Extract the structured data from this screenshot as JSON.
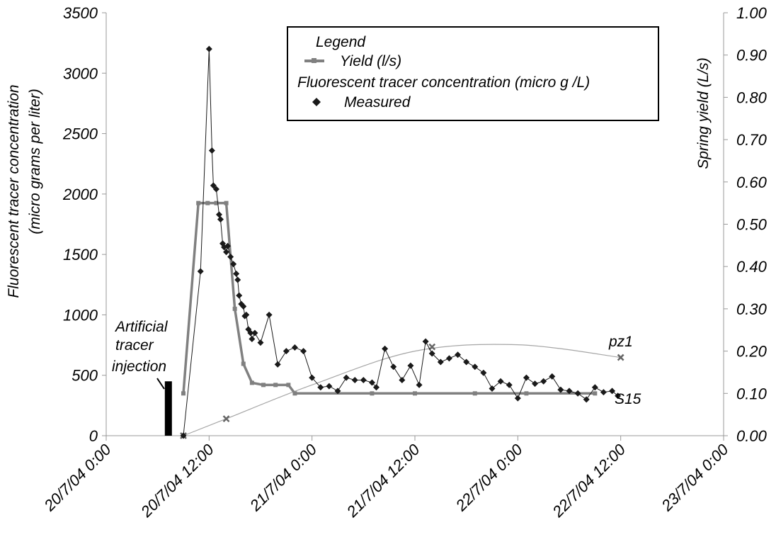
{
  "chart_data": {
    "type": "line",
    "title": "",
    "x_axis": {
      "type": "datetime",
      "ticks": [
        "20/7/04 0:00",
        "20/7/04 12:00",
        "21/7/04 0:00",
        "21/7/04 12:00",
        "22/7/04 0:00",
        "22/7/04 12:00",
        "23/7/04 0:00"
      ],
      "range": [
        "20/7/04 0:00",
        "23/7/04 0:00"
      ]
    },
    "y_axis_left": {
      "label_line1": "Fluorescent  tracer concentration",
      "label_line2": "(micro grams per liter)",
      "ticks": [
        "0",
        "500",
        "1000",
        "1500",
        "2000",
        "2500",
        "3000",
        "3500"
      ],
      "range": [
        0,
        3500
      ]
    },
    "y_axis_right": {
      "label": "Spring yield (L/s)",
      "ticks": [
        "0.00",
        "0.10",
        "0.20",
        "0.30",
        "0.40",
        "0.50",
        "0.60",
        "0.70",
        "0.80",
        "0.90",
        "1.00"
      ],
      "range": [
        0,
        1.0
      ]
    },
    "legend": {
      "placement": "top-right",
      "title": "Legend",
      "yield_label": "Yield (l/s)",
      "conc_title": "Fluorescent tracer concentration (micro g /L)",
      "measured_label": "Measured"
    },
    "annotations": {
      "injection_line1": "Artificial",
      "injection_line2": "tracer",
      "injection_line3": "injection",
      "injection_time": "20/7/04 7:15",
      "injection_height": 450,
      "pz1": "pz1",
      "s15": "S15"
    },
    "colors": {
      "yield": "#808080",
      "measured": "#1a1a1a",
      "pz1": "#a6a6a6"
    },
    "series": [
      {
        "name": "Yield (l/s)",
        "axis": "right",
        "points": [
          [
            "20/7/04 9:00",
            0.1
          ],
          [
            "20/7/04 10:45",
            0.55
          ],
          [
            "20/7/04 11:50",
            0.55
          ],
          [
            "20/7/04 12:50",
            0.55
          ],
          [
            "20/7/04 14:00",
            0.55
          ],
          [
            "20/7/04 15:00",
            0.3
          ],
          [
            "20/7/04 16:00",
            0.17
          ],
          [
            "20/7/04 17:00",
            0.125
          ],
          [
            "20/7/04 18:20",
            0.12
          ],
          [
            "20/7/04 19:45",
            0.12
          ],
          [
            "20/7/04 21:15",
            0.12
          ],
          [
            "20/7/04 22:00",
            0.1
          ],
          [
            "21/7/04 7:00",
            0.1
          ],
          [
            "21/7/04 12:00",
            0.1
          ],
          [
            "21/7/04 19:00",
            0.1
          ],
          [
            "22/7/04 1:00",
            0.1
          ],
          [
            "22/7/04 9:00",
            0.1
          ]
        ]
      },
      {
        "name": "Measured",
        "axis": "left",
        "points": [
          [
            "20/7/04 9:00",
            0
          ],
          [
            "20/7/04 11:00",
            1360
          ],
          [
            "20/7/04 12:00",
            3200
          ],
          [
            "20/7/04 12:20",
            2360
          ],
          [
            "20/7/04 12:30",
            2070
          ],
          [
            "20/7/04 12:50",
            2040
          ],
          [
            "20/7/04 13:10",
            1830
          ],
          [
            "20/7/04 13:20",
            1790
          ],
          [
            "20/7/04 13:35",
            1590
          ],
          [
            "20/7/04 13:45",
            1560
          ],
          [
            "20/7/04 14:00",
            1520
          ],
          [
            "20/7/04 14:10",
            1570
          ],
          [
            "20/7/04 14:30",
            1480
          ],
          [
            "20/7/04 14:50",
            1420
          ],
          [
            "20/7/04 15:10",
            1340
          ],
          [
            "20/7/04 15:20",
            1290
          ],
          [
            "20/7/04 15:30",
            1160
          ],
          [
            "20/7/04 15:45",
            1090
          ],
          [
            "20/7/04 16:00",
            1070
          ],
          [
            "20/7/04 16:10",
            990
          ],
          [
            "20/7/04 16:20",
            1000
          ],
          [
            "20/7/04 16:35",
            880
          ],
          [
            "20/7/04 16:50",
            850
          ],
          [
            "20/7/04 17:00",
            800
          ],
          [
            "20/7/04 17:20",
            850
          ],
          [
            "20/7/04 18:00",
            770
          ],
          [
            "20/7/04 19:00",
            1000
          ],
          [
            "20/7/04 20:00",
            590
          ],
          [
            "20/7/04 21:00",
            700
          ],
          [
            "20/7/04 22:00",
            730
          ],
          [
            "20/7/04 23:00",
            700
          ],
          [
            "21/7/04 0:00",
            480
          ],
          [
            "21/7/04 1:00",
            400
          ],
          [
            "21/7/04 2:00",
            410
          ],
          [
            "21/7/04 3:00",
            370
          ],
          [
            "21/7/04 4:00",
            480
          ],
          [
            "21/7/04 5:00",
            460
          ],
          [
            "21/7/04 6:00",
            460
          ],
          [
            "21/7/04 7:00",
            440
          ],
          [
            "21/7/04 7:30",
            400
          ],
          [
            "21/7/04 8:30",
            720
          ],
          [
            "21/7/04 9:30",
            570
          ],
          [
            "21/7/04 10:30",
            460
          ],
          [
            "21/7/04 11:30",
            580
          ],
          [
            "21/7/04 12:30",
            420
          ],
          [
            "21/7/04 13:15",
            780
          ],
          [
            "21/7/04 14:00",
            680
          ],
          [
            "21/7/04 15:00",
            610
          ],
          [
            "21/7/04 16:00",
            640
          ],
          [
            "21/7/04 17:00",
            670
          ],
          [
            "21/7/04 18:00",
            610
          ],
          [
            "21/7/04 19:00",
            570
          ],
          [
            "21/7/04 20:00",
            520
          ],
          [
            "21/7/04 21:00",
            390
          ],
          [
            "21/7/04 22:00",
            450
          ],
          [
            "21/7/04 23:00",
            420
          ],
          [
            "22/7/04 0:00",
            310
          ],
          [
            "22/7/04 1:00",
            480
          ],
          [
            "22/7/04 2:00",
            430
          ],
          [
            "22/7/04 3:00",
            450
          ],
          [
            "22/7/04 4:00",
            490
          ],
          [
            "22/7/04 5:00",
            380
          ],
          [
            "22/7/04 6:00",
            370
          ],
          [
            "22/7/04 7:00",
            350
          ],
          [
            "22/7/04 8:00",
            300
          ],
          [
            "22/7/04 9:00",
            400
          ],
          [
            "22/7/04 10:00",
            360
          ],
          [
            "22/7/04 11:00",
            370
          ],
          [
            "22/7/04 11:40",
            330
          ]
        ]
      },
      {
        "name": "pz1",
        "axis": "right",
        "points": [
          [
            "20/7/04 9:00",
            0.0
          ],
          [
            "20/7/04 14:00",
            0.04
          ],
          [
            "21/7/04 0:00",
            0.12
          ],
          [
            "21/7/04 12:00",
            0.2
          ],
          [
            "22/7/04 0:00",
            0.215
          ],
          [
            "22/7/04 12:00",
            0.185
          ]
        ],
        "markers": [
          [
            "20/7/04 9:00",
            0.0
          ],
          [
            "20/7/04 14:00",
            0.04
          ],
          [
            "21/7/04 14:00",
            0.21
          ],
          [
            "22/7/04 12:00",
            0.185
          ]
        ]
      }
    ]
  }
}
